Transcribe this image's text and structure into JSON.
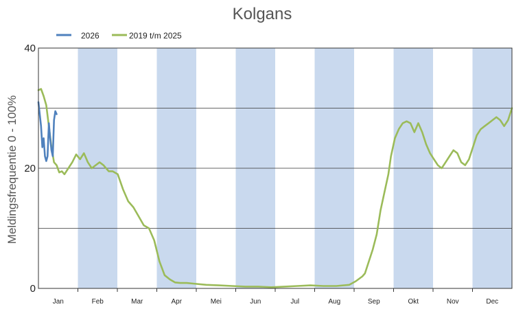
{
  "chart_data": {
    "type": "line",
    "title": "Kolgans",
    "ylabel": "Meldingsfrequentie 0 - 100%",
    "xlabel": "",
    "ylim": [
      0,
      40
    ],
    "yticks": [
      0,
      20,
      40
    ],
    "gridlines": [
      10,
      20,
      30
    ],
    "months": [
      "Jan",
      "Feb",
      "Mar",
      "Apr",
      "Mei",
      "Jun",
      "Jul",
      "Aug",
      "Sep",
      "Okt",
      "Nov",
      "Dec"
    ],
    "shaded_months": [
      1,
      3,
      5,
      7,
      9,
      11
    ],
    "shade_color": "#c9d9ee",
    "legend_position": "top-left",
    "series": [
      {
        "name": "2026",
        "color": "#4f81bd",
        "x": [
          1,
          2,
          3,
          4,
          5,
          6,
          7,
          8,
          9,
          10,
          11,
          12,
          13,
          14,
          15
        ],
        "values": [
          31.0,
          29.0,
          27.0,
          23.5,
          25.0,
          22.0,
          21.2,
          22.0,
          27.5,
          25.0,
          23.0,
          22.0,
          28.0,
          29.5,
          29.0
        ]
      },
      {
        "name": "2019 t/m 2025",
        "color": "#9bbb59",
        "x": [
          1,
          3,
          5,
          7,
          9,
          11,
          13,
          15,
          17,
          19,
          21,
          24,
          27,
          30,
          33,
          36,
          39,
          42,
          45,
          48,
          51,
          55,
          58,
          62,
          66,
          70,
          74,
          78,
          82,
          86,
          90,
          94,
          98,
          102,
          106,
          110,
          115,
          120,
          130,
          140,
          150,
          160,
          170,
          180,
          190,
          200,
          210,
          220,
          230,
          240,
          245,
          250,
          252,
          255,
          258,
          261,
          264,
          267,
          270,
          272,
          275,
          278,
          281,
          284,
          287,
          290,
          293,
          296,
          299,
          302,
          305,
          308,
          311,
          314,
          317,
          320,
          323,
          326,
          329,
          332,
          335,
          338,
          341,
          344,
          347,
          350,
          353,
          356,
          359,
          362,
          365
        ],
        "values": [
          33.0,
          33.2,
          32.0,
          30.5,
          27.0,
          23.5,
          21.0,
          20.5,
          19.3,
          19.5,
          19.0,
          20.0,
          21.0,
          22.3,
          21.5,
          22.5,
          21.0,
          20.0,
          20.5,
          21.0,
          20.5,
          19.5,
          19.5,
          19.0,
          16.5,
          14.5,
          13.5,
          12.0,
          10.5,
          10.0,
          8.0,
          4.5,
          2.2,
          1.5,
          1.0,
          0.9,
          0.9,
          0.8,
          0.6,
          0.5,
          0.4,
          0.3,
          0.3,
          0.2,
          0.3,
          0.4,
          0.5,
          0.4,
          0.4,
          0.6,
          1.2,
          2.0,
          2.5,
          4.5,
          6.5,
          9.0,
          13.0,
          16.0,
          19.0,
          22.0,
          25.0,
          26.5,
          27.5,
          27.8,
          27.5,
          26.0,
          27.5,
          26.0,
          24.0,
          22.5,
          21.5,
          20.5,
          20.0,
          21.0,
          22.0,
          23.0,
          22.5,
          21.0,
          20.5,
          21.5,
          23.5,
          25.5,
          26.5,
          27.0,
          27.5,
          28.0,
          28.5,
          28.0,
          27.0,
          28.0,
          30.0
        ]
      }
    ]
  }
}
